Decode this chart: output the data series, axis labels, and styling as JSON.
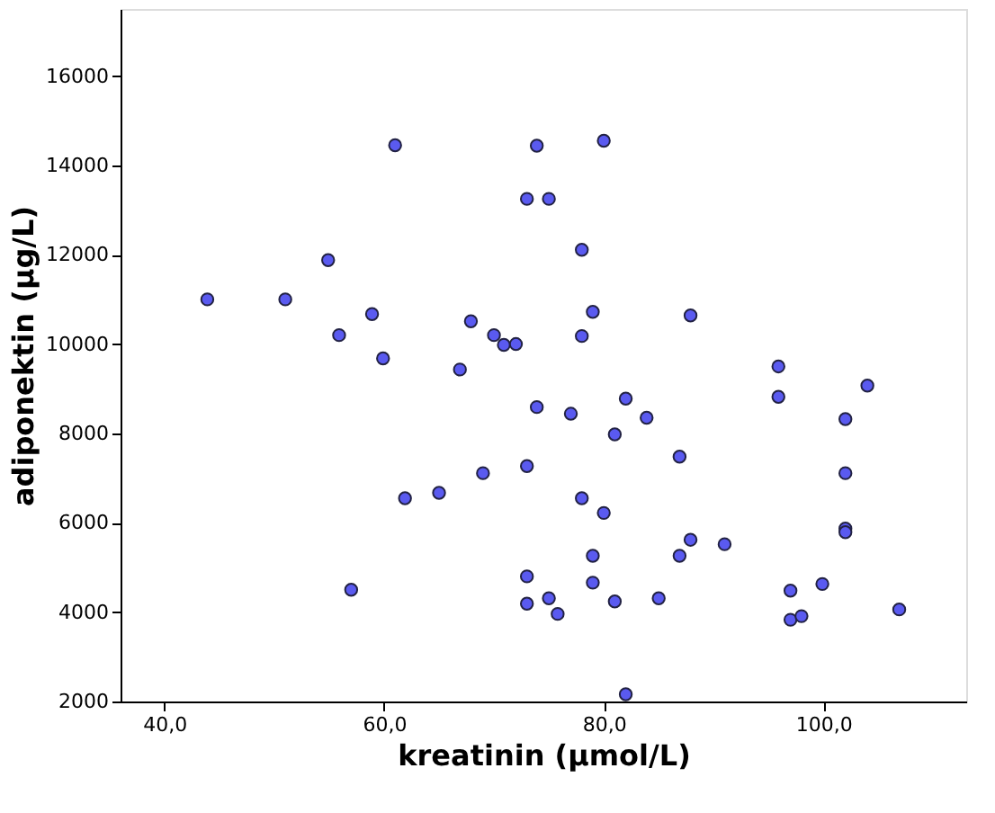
{
  "chart_data": {
    "type": "scatter",
    "xlabel": "kreatinin (µmol/L)",
    "ylabel": "adiponektin (µg/L)",
    "x": [
      61,
      73.9,
      73,
      75,
      54.9,
      43.9,
      51,
      58.9,
      55.9,
      67.9,
      70,
      70.9,
      72,
      59.9,
      66.9,
      73.9,
      80,
      78,
      79,
      78,
      87.9,
      95.9,
      95.9,
      104,
      77,
      82,
      83.9,
      102,
      73,
      69,
      65,
      61.9,
      57,
      73,
      73,
      75,
      75.8,
      81,
      86.9,
      102,
      78,
      80,
      102,
      102,
      87.9,
      91,
      86.9,
      79,
      79,
      99.9,
      97,
      81,
      85,
      97,
      98,
      106.9,
      82
    ],
    "values": [
      14450,
      14440,
      13250,
      13250,
      11880,
      11000,
      11000,
      10670,
      10200,
      10510,
      10200,
      9980,
      10000,
      9680,
      9430,
      8590,
      14550,
      12110,
      10720,
      10180,
      10640,
      9500,
      8820,
      9070,
      8440,
      8780,
      8350,
      8320,
      7270,
      7110,
      6670,
      6550,
      4500,
      4800,
      4190,
      4310,
      3960,
      7980,
      7480,
      7110,
      6550,
      6220,
      5870,
      5790,
      5620,
      5520,
      5260,
      5260,
      4660,
      4630,
      4480,
      4240,
      4310,
      3830,
      3910,
      4060,
      2160
    ],
    "color": "#5a5af0",
    "marker": "circle",
    "xlim": [
      36,
      113
    ],
    "xticks": [
      {
        "value": 40,
        "label": "40,0"
      },
      {
        "value": 60,
        "label": "60,0"
      },
      {
        "value": 80,
        "label": "80,0"
      },
      {
        "value": 100,
        "label": "100,0"
      }
    ],
    "ylim": [
      2000,
      17500
    ],
    "yticks": [
      2000,
      4000,
      6000,
      8000,
      10000,
      12000,
      14000,
      16000
    ],
    "grid": false
  }
}
